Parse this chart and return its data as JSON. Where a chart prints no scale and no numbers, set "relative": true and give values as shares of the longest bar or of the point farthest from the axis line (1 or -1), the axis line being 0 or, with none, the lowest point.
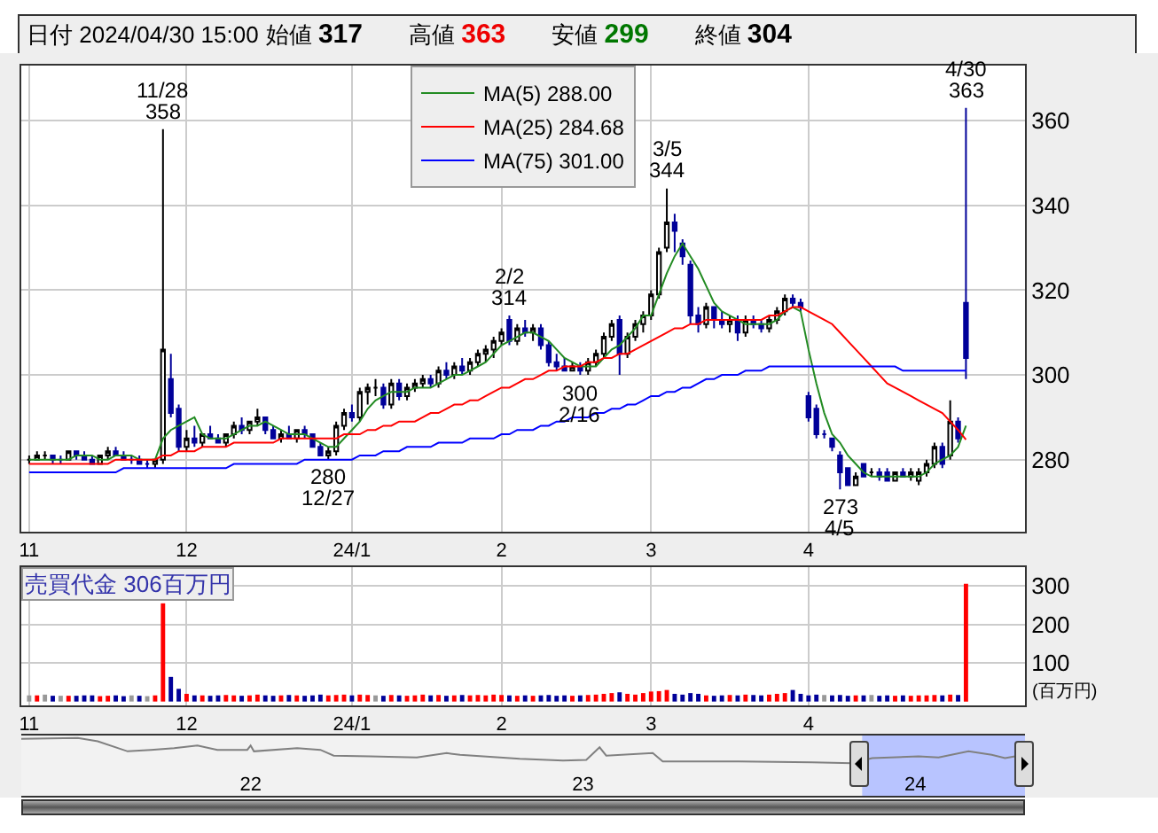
{
  "chart_data": [
    {
      "type": "candlestick",
      "title": "日付 2024/04/30 15:00",
      "annotations": [
        "始値 317",
        "高値 363",
        "安値 299",
        "終値 304",
        {
          "text": "11/28\n358",
          "y": 358
        },
        {
          "text": "280\n12/27",
          "y": 280
        },
        {
          "text": "2/2\n314",
          "y": 314
        },
        {
          "text": "300\n2/16",
          "y": 300
        },
        {
          "text": "3/5\n344",
          "y": 344
        },
        {
          "text": "273\n4/5",
          "y": 273
        },
        {
          "text": "4/30\n363",
          "y": 363
        }
      ],
      "categories": [
        "11",
        null,
        null,
        null,
        null,
        null,
        null,
        null,
        null,
        null,
        null,
        null,
        null,
        null,
        null,
        null,
        null,
        null,
        null,
        null,
        "12",
        null,
        null,
        null,
        null,
        null,
        null,
        null,
        null,
        null,
        null,
        null,
        null,
        null,
        null,
        null,
        null,
        null,
        null,
        null,
        null,
        "24/1",
        null,
        null,
        null,
        null,
        null,
        null,
        null,
        null,
        null,
        null,
        null,
        null,
        null,
        null,
        null,
        null,
        null,
        null,
        "2",
        null,
        null,
        null,
        null,
        null,
        null,
        null,
        null,
        null,
        null,
        null,
        null,
        null,
        null,
        null,
        null,
        null,
        null,
        "3",
        null,
        null,
        null,
        null,
        null,
        null,
        null,
        null,
        null,
        null,
        null,
        null,
        null,
        null,
        null,
        null,
        null,
        null,
        null,
        "4",
        null,
        null,
        null,
        null,
        null,
        null,
        null,
        null,
        null,
        null,
        null,
        null,
        null,
        null,
        null,
        null,
        null,
        null,
        null,
        null
      ],
      "ohlc": [
        [
          280,
          281,
          279,
          280
        ],
        [
          280,
          282,
          280,
          281
        ],
        [
          281,
          282,
          280,
          281
        ],
        [
          281,
          281,
          279,
          280
        ],
        [
          280,
          281,
          279,
          280
        ],
        [
          280,
          282,
          280,
          282
        ],
        [
          282,
          282,
          280,
          281
        ],
        [
          281,
          282,
          280,
          280
        ],
        [
          280,
          281,
          279,
          279
        ],
        [
          279,
          281,
          279,
          281
        ],
        [
          281,
          283,
          280,
          282
        ],
        [
          282,
          283,
          281,
          281
        ],
        [
          281,
          282,
          280,
          280
        ],
        [
          280,
          281,
          279,
          280
        ],
        [
          280,
          281,
          279,
          279
        ],
        [
          279,
          280,
          278,
          279
        ],
        [
          279,
          280,
          278,
          280
        ],
        [
          280,
          358,
          279,
          306
        ],
        [
          299,
          305,
          290,
          291
        ],
        [
          292,
          293,
          282,
          283
        ],
        [
          283,
          287,
          282,
          285
        ],
        [
          285,
          288,
          283,
          284
        ],
        [
          284,
          286,
          283,
          286
        ],
        [
          286,
          288,
          285,
          285
        ],
        [
          285,
          286,
          284,
          284
        ],
        [
          284,
          286,
          283,
          286
        ],
        [
          286,
          289,
          285,
          288
        ],
        [
          288,
          290,
          286,
          287
        ],
        [
          287,
          289,
          286,
          289
        ],
        [
          289,
          292,
          288,
          290
        ],
        [
          290,
          290,
          286,
          287
        ],
        [
          287,
          288,
          285,
          285
        ],
        [
          285,
          287,
          284,
          286
        ],
        [
          286,
          288,
          285,
          285
        ],
        [
          285,
          287,
          284,
          287
        ],
        [
          287,
          288,
          285,
          286
        ],
        [
          286,
          286,
          283,
          283
        ],
        [
          283,
          284,
          281,
          281
        ],
        [
          281,
          283,
          280,
          282
        ],
        [
          282,
          289,
          281,
          288
        ],
        [
          288,
          292,
          287,
          291
        ],
        [
          291,
          293,
          289,
          290
        ],
        [
          290,
          297,
          289,
          296
        ],
        [
          296,
          298,
          293,
          297
        ],
        [
          297,
          299,
          295,
          297
        ],
        [
          297,
          298,
          292,
          293
        ],
        [
          293,
          299,
          292,
          298
        ],
        [
          298,
          299,
          294,
          295
        ],
        [
          295,
          298,
          294,
          297
        ],
        [
          297,
          299,
          296,
          298
        ],
        [
          298,
          300,
          297,
          299
        ],
        [
          299,
          300,
          297,
          298
        ],
        [
          298,
          302,
          297,
          301
        ],
        [
          301,
          303,
          299,
          300
        ],
        [
          300,
          303,
          299,
          302
        ],
        [
          302,
          304,
          300,
          301
        ],
        [
          301,
          304,
          300,
          303
        ],
        [
          303,
          306,
          302,
          305
        ],
        [
          305,
          307,
          303,
          306
        ],
        [
          306,
          309,
          304,
          308
        ],
        [
          308,
          311,
          307,
          310
        ],
        [
          313,
          314,
          307,
          308
        ],
        [
          308,
          312,
          307,
          311
        ],
        [
          311,
          313,
          309,
          310
        ],
        [
          310,
          312,
          308,
          311
        ],
        [
          311,
          312,
          306,
          307
        ],
        [
          307,
          308,
          302,
          303
        ],
        [
          303,
          305,
          301,
          302
        ],
        [
          302,
          304,
          301,
          301
        ],
        [
          301,
          303,
          301,
          302
        ],
        [
          302,
          303,
          300,
          301
        ],
        [
          301,
          304,
          300,
          303
        ],
        [
          303,
          306,
          302,
          305
        ],
        [
          305,
          310,
          304,
          309
        ],
        [
          309,
          313,
          308,
          312
        ],
        [
          313,
          314,
          300,
          305
        ],
        [
          305,
          310,
          304,
          309
        ],
        [
          309,
          313,
          308,
          312
        ],
        [
          312,
          315,
          310,
          314
        ],
        [
          314,
          320,
          313,
          319
        ],
        [
          319,
          330,
          318,
          329
        ],
        [
          330,
          344,
          329,
          336
        ],
        [
          336,
          338,
          329,
          334
        ],
        [
          331,
          332,
          326,
          328
        ],
        [
          326,
          327,
          312,
          314
        ],
        [
          314,
          316,
          310,
          312
        ],
        [
          312,
          317,
          311,
          316
        ],
        [
          316,
          316,
          311,
          313
        ],
        [
          313,
          315,
          311,
          312
        ],
        [
          312,
          314,
          310,
          313
        ],
        [
          313,
          314,
          308,
          310
        ],
        [
          310,
          314,
          309,
          313
        ],
        [
          313,
          314,
          311,
          312
        ],
        [
          312,
          313,
          310,
          311
        ],
        [
          311,
          314,
          310,
          313
        ],
        [
          313,
          316,
          312,
          315
        ],
        [
          315,
          319,
          314,
          318
        ],
        [
          318,
          319,
          316,
          317
        ],
        [
          317,
          318,
          315,
          316
        ],
        [
          295,
          296,
          289,
          290
        ],
        [
          292,
          293,
          285,
          286
        ],
        [
          286,
          287,
          285,
          286
        ],
        [
          285,
          285,
          282,
          283
        ],
        [
          281,
          282,
          273,
          277
        ],
        [
          278,
          278,
          274,
          274
        ],
        [
          274,
          277,
          274,
          276
        ],
        [
          279,
          279,
          276,
          276
        ],
        [
          277,
          278,
          276,
          277
        ],
        [
          277,
          278,
          275,
          276
        ],
        [
          277,
          278,
          275,
          275
        ],
        [
          275,
          277,
          275,
          277
        ],
        [
          277,
          278,
          276,
          276
        ],
        [
          276,
          278,
          275,
          277
        ],
        [
          275,
          278,
          274,
          277
        ],
        [
          277,
          280,
          276,
          279
        ],
        [
          279,
          284,
          278,
          283
        ],
        [
          283,
          284,
          278,
          279
        ],
        [
          281,
          294,
          280,
          289
        ],
        [
          289,
          290,
          284,
          285
        ],
        [
          317,
          363,
          299,
          304
        ]
      ],
      "series": [
        {
          "name": "MA(5) 288.00",
          "type": "line",
          "color": "#228b22",
          "values": [
            280,
            280,
            280,
            280,
            280,
            280,
            281,
            281,
            281,
            280,
            280,
            281,
            281,
            281,
            280,
            280,
            280,
            285,
            287,
            288,
            289,
            290,
            286,
            285,
            285,
            285,
            286,
            287,
            288,
            288,
            289,
            288,
            287,
            286,
            286,
            286,
            285,
            284,
            283,
            283,
            285,
            287,
            289,
            292,
            294,
            295,
            296,
            296,
            296,
            297,
            297,
            297,
            298,
            299,
            300,
            300,
            301,
            302,
            303,
            305,
            307,
            308,
            309,
            310,
            310,
            309,
            308,
            306,
            304,
            303,
            302,
            302,
            302,
            304,
            306,
            307,
            309,
            311,
            314,
            314,
            319,
            324,
            328,
            331,
            328,
            325,
            321,
            317,
            315,
            314,
            313,
            312,
            312,
            312,
            312,
            313,
            315,
            316,
            315,
            306,
            298,
            291,
            286,
            284,
            281,
            279,
            277,
            276,
            276,
            276,
            276,
            276,
            276,
            276,
            277,
            279,
            280,
            281,
            283,
            288
          ]
        },
        {
          "name": "MA(25) 284.68",
          "type": "line",
          "color": "#ff0000",
          "values": [
            279,
            279,
            279,
            279,
            279,
            279,
            279,
            279,
            279,
            279,
            279,
            280,
            280,
            280,
            280,
            280,
            280,
            281,
            281,
            282,
            282,
            282,
            283,
            283,
            283,
            283,
            284,
            284,
            284,
            284,
            284,
            284,
            285,
            285,
            285,
            285,
            285,
            285,
            285,
            285,
            286,
            286,
            286,
            287,
            287,
            288,
            288,
            289,
            289,
            289,
            290,
            291,
            291,
            292,
            293,
            293,
            294,
            294,
            295,
            296,
            297,
            297,
            298,
            299,
            299,
            300,
            301,
            301,
            302,
            302,
            302,
            303,
            303,
            304,
            304,
            305,
            305,
            306,
            307,
            308,
            309,
            310,
            311,
            311,
            312,
            312,
            313,
            313,
            313,
            313,
            313,
            313,
            313,
            313,
            314,
            314,
            315,
            316,
            316,
            315,
            314,
            313,
            312,
            310,
            308,
            306,
            304,
            302,
            300,
            298,
            297,
            296,
            295,
            294,
            293,
            292,
            291,
            289,
            287,
            284.7
          ]
        },
        {
          "name": "MA(75) 301.00",
          "type": "line",
          "color": "#0000ff",
          "values": [
            277,
            277,
            277,
            277,
            277,
            277,
            277,
            277,
            277,
            277,
            277,
            277,
            278,
            278,
            278,
            278,
            278,
            278,
            278,
            278,
            278,
            278,
            278,
            278,
            278,
            278,
            279,
            279,
            279,
            279,
            279,
            279,
            279,
            279,
            279,
            280,
            280,
            280,
            280,
            280,
            280,
            280,
            281,
            281,
            281,
            282,
            282,
            282,
            283,
            283,
            283,
            283,
            284,
            284,
            284,
            284,
            285,
            285,
            285,
            285,
            286,
            286,
            287,
            287,
            287,
            288,
            288,
            289,
            289,
            290,
            290,
            290,
            291,
            291,
            292,
            292,
            293,
            293,
            294,
            295,
            295,
            296,
            296,
            297,
            297,
            298,
            299,
            299,
            300,
            300,
            300,
            301,
            301,
            301,
            302,
            302,
            302,
            302,
            302,
            302,
            302,
            302,
            302,
            302,
            302,
            302,
            302,
            302,
            302,
            302,
            302,
            301,
            301,
            301,
            301,
            301,
            301,
            301,
            301,
            301
          ]
        }
      ],
      "ylim": [
        263,
        373
      ],
      "yticks": [
        280,
        300,
        320,
        340,
        360
      ],
      "grid": true,
      "legend": "top"
    },
    {
      "type": "bar",
      "title": "売買代金 306百万円",
      "ylabel": "(百万円)",
      "categories": [
        "11",
        null,
        null,
        null,
        null,
        null,
        null,
        null,
        null,
        null,
        null,
        null,
        null,
        null,
        null,
        null,
        null,
        null,
        null,
        null,
        "12",
        null,
        null,
        null,
        null,
        null,
        null,
        null,
        null,
        null,
        null,
        null,
        null,
        null,
        null,
        null,
        null,
        null,
        null,
        null,
        null,
        "24/1",
        null,
        null,
        null,
        null,
        null,
        null,
        null,
        null,
        null,
        null,
        null,
        null,
        null,
        null,
        null,
        null,
        null,
        null,
        "2",
        null,
        null,
        null,
        null,
        null,
        null,
        null,
        null,
        null,
        null,
        null,
        null,
        null,
        null,
        null,
        null,
        null,
        null,
        "3",
        null,
        null,
        null,
        null,
        null,
        null,
        null,
        null,
        null,
        null,
        null,
        null,
        null,
        null,
        null,
        null,
        null,
        null,
        null,
        "4",
        null,
        null,
        null,
        null,
        null,
        null,
        null,
        null,
        null,
        null,
        null,
        null,
        null,
        null,
        null,
        null,
        null,
        null,
        null,
        null
      ],
      "values": [
        16,
        16,
        18,
        15,
        15,
        15,
        15,
        16,
        16,
        14,
        15,
        16,
        14,
        16,
        15,
        14,
        16,
        255,
        64,
        33,
        20,
        16,
        16,
        15,
        16,
        17,
        16,
        15,
        16,
        18,
        16,
        15,
        16,
        17,
        16,
        15,
        16,
        18,
        16,
        17,
        18,
        16,
        18,
        17,
        16,
        15,
        17,
        16,
        15,
        16,
        18,
        16,
        17,
        15,
        16,
        17,
        16,
        17,
        16,
        18,
        17,
        16,
        15,
        16,
        15,
        16,
        17,
        15,
        16,
        15,
        16,
        17,
        18,
        20,
        22,
        24,
        20,
        18,
        22,
        26,
        27,
        30,
        20,
        18,
        22,
        20,
        16,
        15,
        16,
        17,
        16,
        18,
        17,
        16,
        18,
        20,
        22,
        30,
        20,
        16,
        18,
        17,
        16,
        17,
        15,
        16,
        16,
        17,
        15,
        16,
        15,
        16,
        15,
        16,
        16,
        17,
        16,
        18,
        17,
        306
      ],
      "colors": [
        "#999999",
        "#ff0000",
        "#999999",
        "#000099",
        "#999999",
        "#ff0000",
        "#000099",
        "#000099",
        "#000099",
        "#ff0000",
        "#ff0000",
        "#000099",
        "#000099",
        "#999999",
        "#000099",
        "#999999",
        "#ff0000",
        "#ff0000",
        "#000099",
        "#000099",
        "#ff0000",
        "#000099",
        "#ff0000",
        "#000099",
        "#000099",
        "#ff0000",
        "#ff0000",
        "#000099",
        "#ff0000",
        "#ff0000",
        "#000099",
        "#000099",
        "#ff0000",
        "#000099",
        "#ff0000",
        "#000099",
        "#000099",
        "#000099",
        "#ff0000",
        "#ff0000",
        "#ff0000",
        "#000099",
        "#ff0000",
        "#ff0000",
        "#999999",
        "#000099",
        "#ff0000",
        "#000099",
        "#ff0000",
        "#ff0000",
        "#ff0000",
        "#000099",
        "#ff0000",
        "#000099",
        "#ff0000",
        "#000099",
        "#ff0000",
        "#ff0000",
        "#ff0000",
        "#ff0000",
        "#ff0000",
        "#000099",
        "#ff0000",
        "#000099",
        "#ff0000",
        "#000099",
        "#000099",
        "#000099",
        "#000099",
        "#ff0000",
        "#000099",
        "#ff0000",
        "#ff0000",
        "#ff0000",
        "#ff0000",
        "#000099",
        "#ff0000",
        "#ff0000",
        "#ff0000",
        "#ff0000",
        "#ff0000",
        "#ff0000",
        "#000099",
        "#000099",
        "#000099",
        "#000099",
        "#ff0000",
        "#000099",
        "#000099",
        "#ff0000",
        "#000099",
        "#ff0000",
        "#000099",
        "#000099",
        "#ff0000",
        "#ff0000",
        "#ff0000",
        "#000099",
        "#000099",
        "#000099",
        "#000099",
        "#999999",
        "#000099",
        "#000099",
        "#000099",
        "#ff0000",
        "#000099",
        "#999999",
        "#000099",
        "#000099",
        "#ff0000",
        "#000099",
        "#ff0000",
        "#ff0000",
        "#ff0000",
        "#ff0000",
        "#000099",
        "#ff0000",
        "#000099",
        "#ff0000"
      ],
      "ylim": [
        -10,
        349
      ],
      "yticks": [
        100,
        200,
        300
      ],
      "grid": true
    },
    {
      "type": "line",
      "relative": true,
      "color": "#808080",
      "tick_labels": "x",
      "x": [
        2021.31,
        2021.48,
        2021.54,
        2021.63,
        2021.7,
        2021.77,
        2021.84,
        2021.9,
        2021.99,
        2022.0,
        2022.01,
        2022.14,
        2022.21,
        2022.25,
        2022.36,
        2022.5,
        2022.59,
        2022.63,
        2022.81,
        2022.94,
        2023.01,
        2023.05,
        2023.07,
        2023.21,
        2023.24,
        2023.47,
        2023.69,
        2023.81,
        2023.87,
        2024.01,
        2024.07,
        2024.16,
        2024.23,
        2024.27,
        2024.3
      ],
      "values": [
        0.97,
        1,
        0.87,
        0.47,
        0.53,
        0.6,
        0.7,
        0.53,
        0.53,
        0.7,
        0.47,
        0.6,
        0.53,
        0.3,
        0.27,
        0.23,
        0.4,
        0.33,
        0.17,
        0.1,
        0.13,
        0.63,
        0.3,
        0.4,
        0.07,
        0.07,
        0.03,
        0,
        0.2,
        0.27,
        0.23,
        0.47,
        0.33,
        0.2,
        0.27
      ],
      "xlim": [
        2021.31,
        2024.33
      ],
      "xticks": [
        {
          "value": 2022,
          "label": "22"
        },
        {
          "value": 2023,
          "label": "23"
        },
        {
          "value": 2024,
          "label": "24"
        }
      ],
      "bands": [
        {
          "axis": "x",
          "from": 2023.84,
          "to": 2024.33,
          "color": "#b8c4ff"
        }
      ]
    }
  ]
}
